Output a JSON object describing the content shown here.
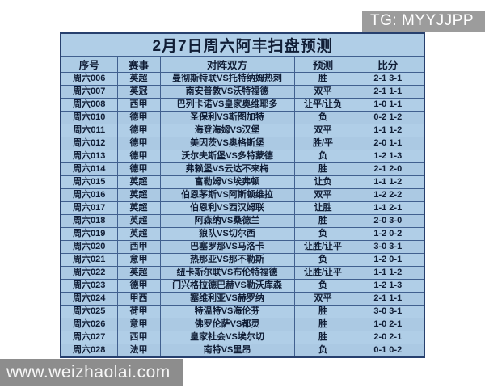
{
  "badge": {
    "text": "TG: MYYJJPP"
  },
  "watermark": {
    "text": "www.weizhaolai.com"
  },
  "colors": {
    "title_red": "#e1251b",
    "table_bg": "#b0cee7",
    "table_border": "#27406e",
    "cell_border": "#41608f",
    "text": "#101d35",
    "badge_bg": "#9c9c9c",
    "watermark_bg": "#8d8d8d"
  },
  "table": {
    "title": "2月7日周六阿丰扫盘预测",
    "columns": [
      "序号",
      "赛事",
      "对阵双方",
      "预测",
      "比分"
    ],
    "column_keys": [
      "index",
      "league",
      "matchup",
      "prediction",
      "score"
    ],
    "rows": [
      [
        "周六006",
        "英超",
        "曼彻斯特联VS托特纳姆热刺",
        "胜",
        "2-1 3-1"
      ],
      [
        "周六007",
        "英冠",
        "南安普敦VS沃特福德",
        "双平",
        "2-1 1-1"
      ],
      [
        "周六008",
        "西甲",
        "巴列卡诺VS皇家奥维耶多",
        "让平/让负",
        "1-0 1-1"
      ],
      [
        "周六010",
        "德甲",
        "圣保利VS斯图加特",
        "负",
        "0-2 1-2"
      ],
      [
        "周六011",
        "德甲",
        "海登海姆VS汉堡",
        "双平",
        "1-1 1-2"
      ],
      [
        "周六012",
        "德甲",
        "美因茨VS奥格斯堡",
        "胜/平",
        "2-0 1-1"
      ],
      [
        "周六013",
        "德甲",
        "沃尔夫斯堡VS多特蒙德",
        "负",
        "1-2 1-3"
      ],
      [
        "周六014",
        "德甲",
        "弗赖堡VS云达不来梅",
        "胜",
        "2-1 2-0"
      ],
      [
        "周六015",
        "英超",
        "富勒姆VS埃弗顿",
        "让负",
        "1-1 1-2"
      ],
      [
        "周六016",
        "英超",
        "伯恩茅斯VS阿斯顿维拉",
        "双平",
        "1-2 2-2"
      ],
      [
        "周六017",
        "英超",
        "伯恩利VS西汉姆联",
        "让胜",
        "1-1 2-1"
      ],
      [
        "周六018",
        "英超",
        "阿森纳VS桑德兰",
        "胜",
        "2-0 3-0"
      ],
      [
        "周六019",
        "英超",
        "狼队VS切尔西",
        "负",
        "1-2 0-2"
      ],
      [
        "周六020",
        "西甲",
        "巴塞罗那VS马洛卡",
        "让胜/让平",
        "3-0 3-1"
      ],
      [
        "周六021",
        "意甲",
        "热那亚VS那不勒斯",
        "负",
        "1-2 0-1"
      ],
      [
        "周六022",
        "英超",
        "纽卡斯尔联VS布伦特福德",
        "让胜/让平",
        "1-1 1-2"
      ],
      [
        "周六023",
        "德甲",
        "门兴格拉德巴赫VS勒沃库森",
        "负",
        "1-2 1-3"
      ],
      [
        "周六024",
        "甲西",
        "塞维利亚VS赫罗纳",
        "双平",
        "2-1 1-1"
      ],
      [
        "周六025",
        "荷甲",
        "特温特VS海伦芬",
        "胜",
        "3-0 3-1"
      ],
      [
        "周六026",
        "意甲",
        "佛罗伦萨VS都灵",
        "胜",
        "1-0 2-1"
      ],
      [
        "周六027",
        "西甲",
        "皇家社会VS埃尔切",
        "胜",
        "2-0 2-1"
      ],
      [
        "周六028",
        "法甲",
        "南特VS里昂",
        "负",
        "0-1 0-2"
      ]
    ]
  }
}
